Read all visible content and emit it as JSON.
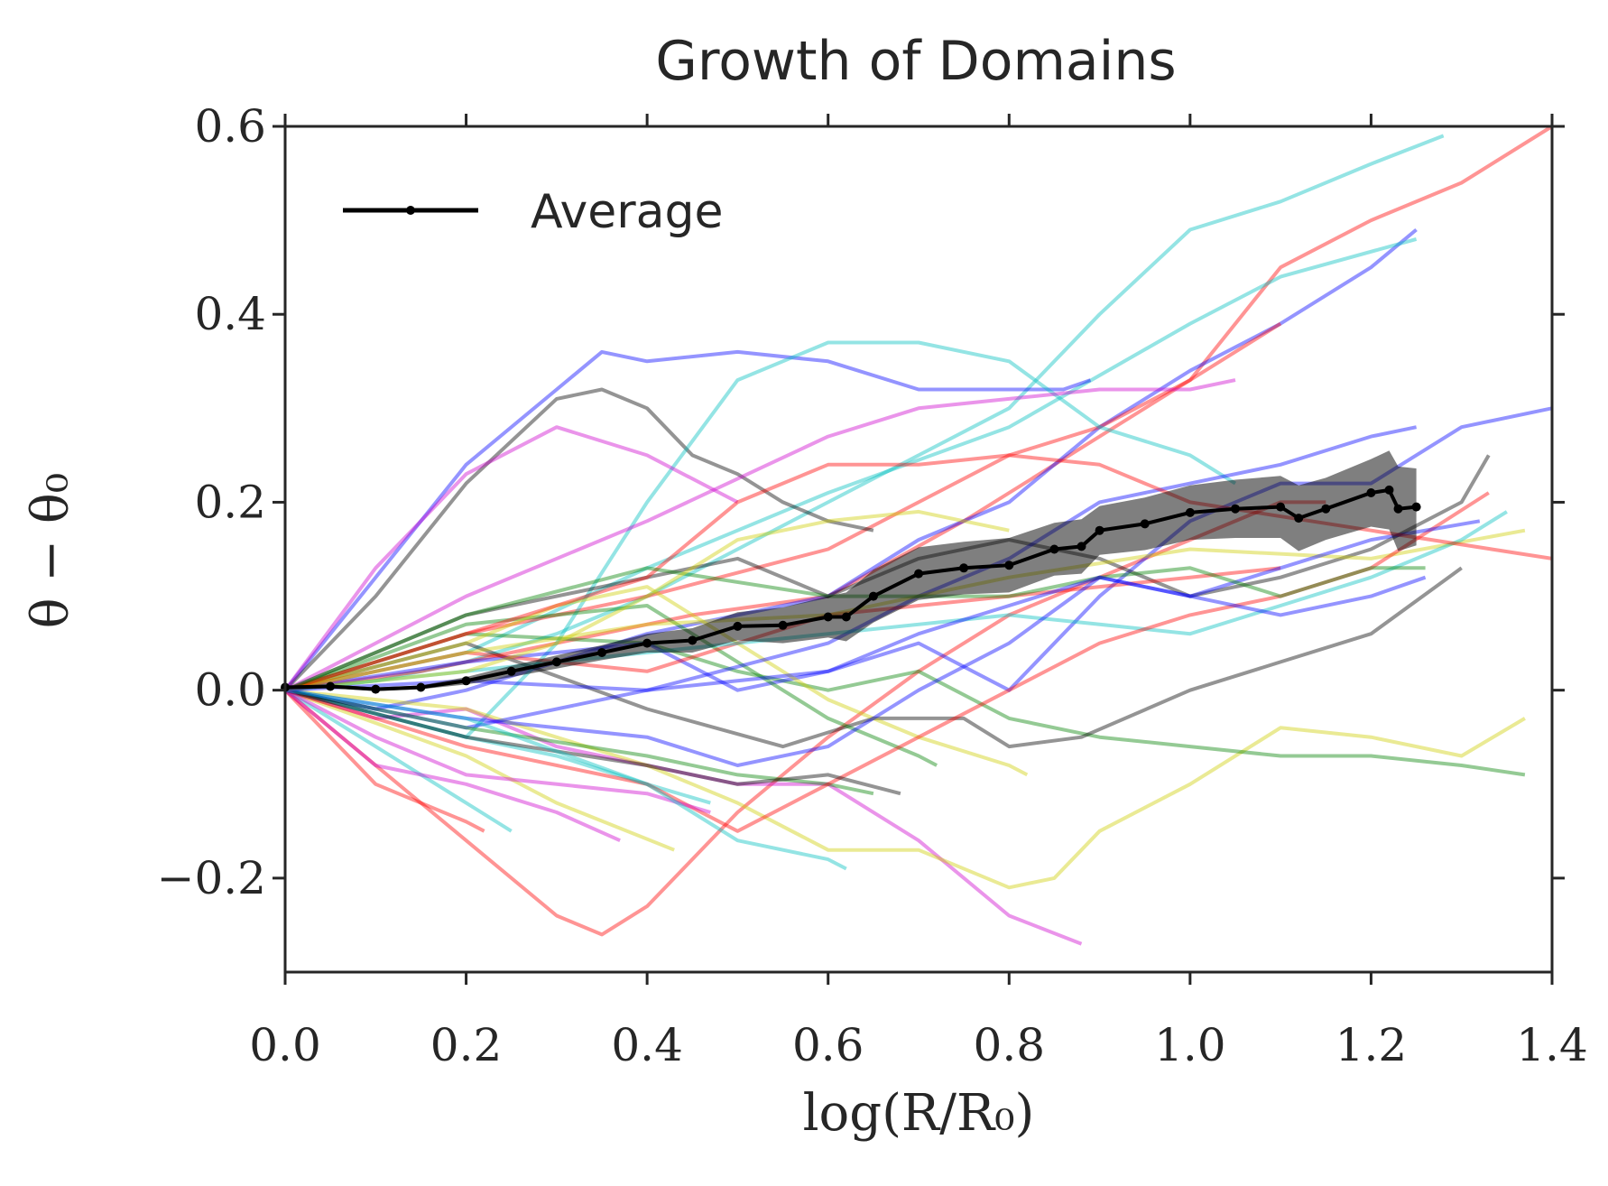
{
  "chart_data": {
    "type": "line",
    "title": "Growth of Domains",
    "xlabel": "log(R/R₀)",
    "ylabel": "θ − θ₀",
    "xlim": [
      0.0,
      1.4
    ],
    "ylim": [
      -0.3,
      0.6
    ],
    "xticks": [
      0.0,
      0.2,
      0.4,
      0.6,
      0.8,
      1.0,
      1.2,
      1.4
    ],
    "yticks": [
      -0.2,
      0.0,
      0.2,
      0.4,
      0.6
    ],
    "xtick_labels": [
      "0.0",
      "0.2",
      "0.4",
      "0.6",
      "0.8",
      "1.0",
      "1.2",
      "1.4"
    ],
    "ytick_labels": [
      "−0.2",
      "0.0",
      "0.2",
      "0.4",
      "0.6"
    ],
    "grid": false,
    "legend_position": "top-left",
    "legend": [
      {
        "label": "Average",
        "color": "#000000"
      }
    ],
    "average": {
      "name": "Average",
      "color": "#000000",
      "x": [
        0.0,
        0.05,
        0.1,
        0.15,
        0.2,
        0.25,
        0.3,
        0.35,
        0.4,
        0.45,
        0.5,
        0.55,
        0.6,
        0.62,
        0.65,
        0.7,
        0.75,
        0.8,
        0.85,
        0.88,
        0.9,
        0.95,
        1.0,
        1.05,
        1.1,
        1.12,
        1.15,
        1.2,
        1.22,
        1.23,
        1.25
      ],
      "y": [
        0.003,
        0.004,
        0.001,
        0.003,
        0.01,
        0.02,
        0.03,
        0.04,
        0.05,
        0.053,
        0.068,
        0.069,
        0.078,
        0.078,
        0.1,
        0.124,
        0.13,
        0.133,
        0.15,
        0.153,
        0.17,
        0.177,
        0.189,
        0.193,
        0.195,
        0.183,
        0.193,
        0.21,
        0.213,
        0.193,
        0.195
      ],
      "band_upper": [
        0.005,
        0.006,
        0.003,
        0.005,
        0.014,
        0.026,
        0.037,
        0.048,
        0.06,
        0.066,
        0.083,
        0.088,
        0.1,
        0.104,
        0.128,
        0.152,
        0.158,
        0.162,
        0.178,
        0.182,
        0.196,
        0.205,
        0.218,
        0.224,
        0.228,
        0.218,
        0.226,
        0.246,
        0.255,
        0.238,
        0.236
      ],
      "band_lower": [
        0.001,
        0.002,
        -0.001,
        0.001,
        0.006,
        0.014,
        0.023,
        0.032,
        0.04,
        0.04,
        0.053,
        0.05,
        0.056,
        0.052,
        0.072,
        0.096,
        0.102,
        0.104,
        0.122,
        0.124,
        0.144,
        0.149,
        0.16,
        0.162,
        0.162,
        0.148,
        0.16,
        0.174,
        0.171,
        0.148,
        0.154
      ]
    },
    "series": [
      {
        "color": "#00bfbf",
        "x": [
          0,
          0.1,
          0.2,
          0.3,
          0.4,
          0.5,
          0.6,
          0.7,
          0.8,
          0.9,
          1.0,
          1.1,
          1.2,
          1.28
        ],
        "y": [
          0,
          0.01,
          0.03,
          0.06,
          0.1,
          0.15,
          0.2,
          0.25,
          0.3,
          0.4,
          0.49,
          0.52,
          0.56,
          0.59
        ]
      },
      {
        "color": "#ff0000",
        "x": [
          0,
          0.15,
          0.3,
          0.45,
          0.6,
          0.75,
          0.9,
          1.0,
          1.1,
          1.2,
          1.3,
          1.4
        ],
        "y": [
          0,
          0.02,
          0.05,
          0.08,
          0.1,
          0.18,
          0.27,
          0.33,
          0.45,
          0.5,
          0.54,
          0.6
        ]
      },
      {
        "color": "#0000ff",
        "x": [
          0,
          0.1,
          0.2,
          0.3,
          0.4,
          0.5,
          0.6,
          0.7,
          0.8,
          0.9,
          1.0,
          1.1,
          1.2,
          1.25
        ],
        "y": [
          0,
          -0.02,
          0.0,
          0.03,
          0.06,
          0.08,
          0.1,
          0.16,
          0.2,
          0.28,
          0.34,
          0.39,
          0.45,
          0.49
        ]
      },
      {
        "color": "#00bfbf",
        "x": [
          0,
          0.2,
          0.4,
          0.6,
          0.8,
          1.0,
          1.1,
          1.25
        ],
        "y": [
          0,
          0.04,
          0.13,
          0.21,
          0.28,
          0.39,
          0.44,
          0.48
        ]
      },
      {
        "color": "#ff0000",
        "x": [
          0,
          0.2,
          0.4,
          0.6,
          0.7,
          0.8,
          0.9,
          1.0,
          1.1
        ],
        "y": [
          0,
          0.06,
          0.1,
          0.15,
          0.2,
          0.25,
          0.28,
          0.33,
          0.39
        ]
      },
      {
        "color": "#0000ff",
        "x": [
          0,
          0.1,
          0.2,
          0.3,
          0.35,
          0.4,
          0.5,
          0.6,
          0.7,
          0.8,
          0.86,
          0.89
        ],
        "y": [
          0,
          0.12,
          0.24,
          0.32,
          0.36,
          0.35,
          0.36,
          0.35,
          0.32,
          0.32,
          0.32,
          0.33
        ]
      },
      {
        "color": "#000000",
        "x": [
          0,
          0.1,
          0.2,
          0.3,
          0.35,
          0.4,
          0.45,
          0.5,
          0.55,
          0.6,
          0.65
        ],
        "y": [
          0,
          0.1,
          0.22,
          0.31,
          0.32,
          0.3,
          0.25,
          0.23,
          0.2,
          0.18,
          0.17
        ]
      },
      {
        "color": "#00bfbf",
        "x": [
          0,
          0.2,
          0.3,
          0.4,
          0.5,
          0.6,
          0.7,
          0.8,
          0.9,
          1.0,
          1.05
        ],
        "y": [
          0,
          -0.05,
          0.05,
          0.2,
          0.33,
          0.37,
          0.37,
          0.35,
          0.28,
          0.25,
          0.22
        ]
      },
      {
        "color": "#cc00cc",
        "x": [
          0,
          0.1,
          0.2,
          0.3,
          0.4,
          0.5
        ],
        "y": [
          0,
          0.13,
          0.23,
          0.28,
          0.25,
          0.2
        ]
      },
      {
        "color": "#ff0000",
        "x": [
          0,
          0.2,
          0.3,
          0.35,
          0.4,
          0.5,
          0.6,
          0.7,
          0.8,
          0.9,
          1.0,
          1.1,
          1.15
        ],
        "y": [
          0,
          -0.16,
          -0.24,
          -0.26,
          -0.23,
          -0.13,
          -0.05,
          0.02,
          0.08,
          0.12,
          0.16,
          0.2,
          0.2
        ]
      },
      {
        "color": "#cc00cc",
        "x": [
          0,
          0.1,
          0.2,
          0.3,
          0.4,
          0.5,
          0.6,
          0.7,
          0.8,
          0.88
        ],
        "y": [
          0,
          -0.03,
          -0.02,
          -0.06,
          -0.08,
          -0.1,
          -0.1,
          -0.16,
          -0.24,
          -0.27
        ]
      },
      {
        "color": "#cccc00",
        "x": [
          0,
          0.2,
          0.4,
          0.5,
          0.6,
          0.7,
          0.8,
          0.85,
          0.9,
          1.0,
          1.1,
          1.2,
          1.3,
          1.37
        ],
        "y": [
          0,
          -0.02,
          -0.08,
          -0.12,
          -0.17,
          -0.17,
          -0.21,
          -0.2,
          -0.15,
          -0.1,
          -0.04,
          -0.05,
          -0.07,
          -0.03
        ]
      },
      {
        "color": "#008000",
        "x": [
          0,
          0.2,
          0.4,
          0.5,
          0.6,
          0.7,
          0.8,
          0.9,
          1.0,
          1.1,
          1.2,
          1.3,
          1.37
        ],
        "y": [
          0,
          0.06,
          0.05,
          0.02,
          0.0,
          0.02,
          -0.03,
          -0.05,
          -0.06,
          -0.07,
          -0.07,
          -0.08,
          -0.09
        ]
      },
      {
        "color": "#000000",
        "x": [
          0,
          0.2,
          0.4,
          0.55,
          0.65,
          0.75,
          0.8,
          0.88,
          1.0,
          1.1,
          1.2,
          1.3
        ],
        "y": [
          0,
          0.05,
          -0.02,
          -0.06,
          -0.03,
          -0.03,
          -0.06,
          -0.05,
          0.0,
          0.03,
          0.06,
          0.13
        ]
      },
      {
        "color": "#0000ff",
        "x": [
          0,
          0.2,
          0.4,
          0.5,
          0.6,
          0.7,
          0.8,
          0.9,
          1.0,
          1.1,
          1.2,
          1.3,
          1.4
        ],
        "y": [
          0,
          0.03,
          0.05,
          0.0,
          0.02,
          0.05,
          0.0,
          0.1,
          0.18,
          0.22,
          0.22,
          0.28,
          0.3
        ]
      },
      {
        "color": "#ff0000",
        "x": [
          0,
          0.1,
          0.2,
          0.22
        ],
        "y": [
          0,
          -0.1,
          -0.14,
          -0.15
        ]
      },
      {
        "color": "#00bfbf",
        "x": [
          0,
          0.1,
          0.2,
          0.25
        ],
        "y": [
          0,
          -0.06,
          -0.12,
          -0.15
        ]
      },
      {
        "color": "#cc00cc",
        "x": [
          0,
          0.1,
          0.2,
          0.3,
          0.37
        ],
        "y": [
          0,
          -0.08,
          -0.1,
          -0.13,
          -0.16
        ]
      },
      {
        "color": "#cccc00",
        "x": [
          0,
          0.2,
          0.3,
          0.43
        ],
        "y": [
          0,
          -0.07,
          -0.12,
          -0.17
        ]
      },
      {
        "color": "#00bfbf",
        "x": [
          0,
          0.2,
          0.3,
          0.4,
          0.47
        ],
        "y": [
          0,
          -0.05,
          -0.07,
          -0.1,
          -0.12
        ]
      },
      {
        "color": "#008000",
        "x": [
          0,
          0.2,
          0.4,
          0.5,
          0.6,
          0.7,
          0.72
        ],
        "y": [
          0,
          0.07,
          0.09,
          0.03,
          -0.03,
          -0.07,
          -0.08
        ]
      },
      {
        "color": "#cccc00",
        "x": [
          0,
          0.2,
          0.3,
          0.4,
          0.5,
          0.6,
          0.7,
          0.8,
          0.82
        ],
        "y": [
          0,
          0.05,
          0.09,
          0.11,
          0.05,
          -0.01,
          -0.05,
          -0.08,
          -0.09
        ]
      },
      {
        "color": "#000000",
        "x": [
          0,
          0.2,
          0.4,
          0.5,
          0.6,
          0.7,
          0.8,
          0.9,
          1.0,
          1.1,
          1.2,
          1.3,
          1.33
        ],
        "y": [
          0,
          0.08,
          0.12,
          0.14,
          0.1,
          0.14,
          0.16,
          0.14,
          0.1,
          0.12,
          0.15,
          0.2,
          0.25
        ]
      },
      {
        "color": "#0000ff",
        "x": [
          0,
          0.2,
          0.4,
          0.6,
          0.7,
          0.8,
          0.9,
          1.0,
          1.1,
          1.2,
          1.25
        ],
        "y": [
          0,
          -0.04,
          0.0,
          0.05,
          0.1,
          0.14,
          0.2,
          0.22,
          0.24,
          0.27,
          0.28
        ]
      },
      {
        "color": "#ff0000",
        "x": [
          0,
          0.2,
          0.4,
          0.6,
          0.7,
          0.8,
          0.9,
          1.0,
          1.1
        ],
        "y": [
          0,
          0.04,
          0.02,
          0.08,
          0.09,
          0.1,
          0.11,
          0.12,
          0.13
        ]
      },
      {
        "color": "#cc00cc",
        "x": [
          0,
          0.2,
          0.4,
          0.6,
          0.7,
          0.8,
          0.9,
          1.0,
          1.05
        ],
        "y": [
          0,
          0.1,
          0.18,
          0.27,
          0.3,
          0.31,
          0.32,
          0.32,
          0.33
        ]
      },
      {
        "color": "#008000",
        "x": [
          0,
          0.2,
          0.4,
          0.5,
          0.6,
          0.65
        ],
        "y": [
          0,
          -0.04,
          -0.07,
          -0.09,
          -0.1,
          -0.11
        ]
      },
      {
        "color": "#cccc00",
        "x": [
          0,
          0.2,
          0.4,
          0.6,
          0.8,
          1.0,
          1.2,
          1.37
        ],
        "y": [
          0,
          0.04,
          0.07,
          0.08,
          0.12,
          0.15,
          0.14,
          0.17
        ]
      },
      {
        "color": "#00bfbf",
        "x": [
          0,
          0.2,
          0.4,
          0.6,
          0.8,
          0.9,
          1.0,
          1.1,
          1.2,
          1.3,
          1.35
        ],
        "y": [
          0,
          0.02,
          0.04,
          0.06,
          0.08,
          0.07,
          0.06,
          0.09,
          0.12,
          0.16,
          0.19
        ]
      },
      {
        "color": "#ff0000",
        "x": [
          0,
          0.2,
          0.4,
          0.5,
          0.6,
          0.7,
          0.8,
          0.9,
          1.0,
          1.1,
          1.2,
          1.33
        ],
        "y": [
          0,
          -0.06,
          -0.1,
          -0.15,
          -0.1,
          -0.05,
          0.0,
          0.05,
          0.08,
          0.1,
          0.13,
          0.21
        ]
      },
      {
        "color": "#0000ff",
        "x": [
          0,
          0.2,
          0.4,
          0.5,
          0.6,
          0.7,
          0.8,
          0.9,
          1.0,
          1.1,
          1.2,
          1.32
        ],
        "y": [
          0,
          -0.03,
          -0.05,
          -0.08,
          -0.06,
          0.0,
          0.05,
          0.12,
          0.1,
          0.13,
          0.16,
          0.18
        ]
      },
      {
        "color": "#000000",
        "x": [
          0,
          0.2,
          0.4,
          0.5,
          0.6,
          0.68
        ],
        "y": [
          0,
          -0.05,
          -0.08,
          -0.1,
          -0.09,
          -0.11
        ]
      },
      {
        "color": "#ff0000",
        "x": [
          0,
          0.2,
          0.4,
          0.5,
          0.6,
          0.7,
          0.8,
          0.9,
          1.0,
          1.2,
          1.4
        ],
        "y": [
          0,
          0.06,
          0.12,
          0.2,
          0.24,
          0.24,
          0.25,
          0.24,
          0.2,
          0.17,
          0.14
        ]
      },
      {
        "color": "#008000",
        "x": [
          0,
          0.2,
          0.4,
          0.6,
          0.8,
          0.9,
          1.0,
          1.1,
          1.2,
          1.26
        ],
        "y": [
          0,
          0.08,
          0.13,
          0.1,
          0.1,
          0.12,
          0.13,
          0.1,
          0.13,
          0.13
        ]
      },
      {
        "color": "#cc00cc",
        "x": [
          0,
          0.1,
          0.2,
          0.3,
          0.4,
          0.47
        ],
        "y": [
          0,
          -0.05,
          -0.09,
          -0.1,
          -0.11,
          -0.13
        ]
      },
      {
        "color": "#00bfbf",
        "x": [
          0,
          0.2,
          0.4,
          0.5,
          0.6,
          0.62
        ],
        "y": [
          0,
          -0.03,
          -0.1,
          -0.16,
          -0.18,
          -0.19
        ]
      },
      {
        "color": "#cccc00",
        "x": [
          0,
          0.2,
          0.3,
          0.4,
          0.5,
          0.6,
          0.7,
          0.8
        ],
        "y": [
          0,
          0.02,
          0.05,
          0.1,
          0.16,
          0.18,
          0.19,
          0.17
        ]
      },
      {
        "color": "#0000ff",
        "x": [
          0,
          0.2,
          0.4,
          0.6,
          0.7,
          0.8,
          0.9,
          1.0,
          1.1,
          1.2,
          1.26
        ],
        "y": [
          0,
          0.01,
          0.0,
          0.02,
          0.06,
          0.09,
          0.12,
          0.1,
          0.08,
          0.1,
          0.12
        ]
      }
    ]
  }
}
